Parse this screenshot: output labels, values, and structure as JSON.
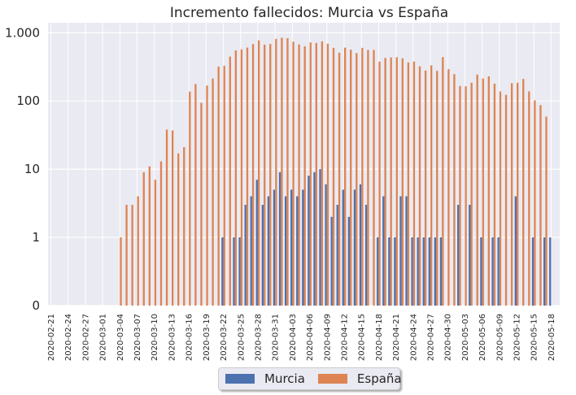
{
  "chart_data": {
    "type": "bar",
    "title": "Incremento fallecidos: Murcia vs España",
    "xlabel": "",
    "ylabel": "",
    "yscale": "symlog",
    "yticks": [
      0,
      1,
      10,
      100,
      1000
    ],
    "ytick_labels": [
      "0",
      "1",
      "10",
      "100",
      "1.000"
    ],
    "ylim": [
      0,
      1400
    ],
    "grid": true,
    "legend": "bottom-center",
    "colors": {
      "Murcia": "#4c72b0",
      "España": "#dd8452",
      "plot_bg": "#eaeaf2",
      "grid": "#ffffff"
    },
    "categories": [
      "2020-02-21",
      "2020-02-22",
      "2020-02-23",
      "2020-02-24",
      "2020-02-25",
      "2020-02-26",
      "2020-02-27",
      "2020-02-28",
      "2020-02-29",
      "2020-03-01",
      "2020-03-02",
      "2020-03-03",
      "2020-03-04",
      "2020-03-05",
      "2020-03-06",
      "2020-03-07",
      "2020-03-08",
      "2020-03-09",
      "2020-03-10",
      "2020-03-11",
      "2020-03-12",
      "2020-03-13",
      "2020-03-14",
      "2020-03-15",
      "2020-03-16",
      "2020-03-17",
      "2020-03-18",
      "2020-03-19",
      "2020-03-20",
      "2020-03-21",
      "2020-03-22",
      "2020-03-23",
      "2020-03-24",
      "2020-03-25",
      "2020-03-26",
      "2020-03-27",
      "2020-03-28",
      "2020-03-29",
      "2020-03-30",
      "2020-03-31",
      "2020-04-01",
      "2020-04-02",
      "2020-04-03",
      "2020-04-04",
      "2020-04-05",
      "2020-04-06",
      "2020-04-07",
      "2020-04-08",
      "2020-04-09",
      "2020-04-10",
      "2020-04-11",
      "2020-04-12",
      "2020-04-13",
      "2020-04-14",
      "2020-04-15",
      "2020-04-16",
      "2020-04-17",
      "2020-04-18",
      "2020-04-19",
      "2020-04-20",
      "2020-04-21",
      "2020-04-22",
      "2020-04-23",
      "2020-04-24",
      "2020-04-25",
      "2020-04-26",
      "2020-04-27",
      "2020-04-28",
      "2020-04-29",
      "2020-04-30",
      "2020-05-01",
      "2020-05-02",
      "2020-05-03",
      "2020-05-04",
      "2020-05-05",
      "2020-05-06",
      "2020-05-07",
      "2020-05-08",
      "2020-05-09",
      "2020-05-10",
      "2020-05-11",
      "2020-05-12",
      "2020-05-13",
      "2020-05-14",
      "2020-05-15",
      "2020-05-16",
      "2020-05-17",
      "2020-05-18",
      "2020-05-19"
    ],
    "tick_every": 3,
    "series": [
      {
        "name": "Murcia",
        "values": [
          0,
          0,
          0,
          0,
          0,
          0,
          0,
          0,
          0,
          0,
          0,
          0,
          0,
          0,
          0,
          0,
          0,
          0,
          0,
          0,
          0,
          0,
          0,
          0,
          0,
          0,
          0,
          0,
          0,
          0,
          1,
          0,
          1,
          1,
          3,
          4,
          7,
          3,
          4,
          5,
          9,
          4,
          5,
          4,
          5,
          8,
          9,
          10,
          6,
          2,
          3,
          5,
          2,
          5,
          6,
          3,
          0,
          1,
          4,
          1,
          1,
          4,
          4,
          1,
          1,
          1,
          1,
          1,
          1,
          0,
          0,
          3,
          0,
          3,
          0,
          1,
          0,
          1,
          1,
          0,
          0,
          4,
          0,
          0,
          1,
          0,
          1,
          1,
          0
        ]
      },
      {
        "name": "España",
        "values": [
          0,
          0,
          0,
          0,
          0,
          0,
          0,
          0,
          0,
          0,
          0,
          0,
          1,
          3,
          3,
          4,
          9,
          11,
          7,
          13,
          38,
          37,
          17,
          21,
          137,
          177,
          94,
          168,
          213,
          319,
          328,
          447,
          550,
          571,
          606,
          682,
          773,
          668,
          684,
          811,
          844,
          830,
          738,
          674,
          633,
          720,
          707,
          748,
          689,
          600,
          510,
          605,
          564,
          503,
          600,
          559,
          559,
          377,
          428,
          434,
          437,
          421,
          367,
          378,
          322,
          279,
          332,
          276,
          440,
          292,
          247,
          166,
          164,
          185,
          244,
          213,
          229,
          179,
          138,
          123,
          182,
          185,
          210,
          138,
          102,
          87,
          59,
          0,
          0
        ]
      }
    ]
  }
}
